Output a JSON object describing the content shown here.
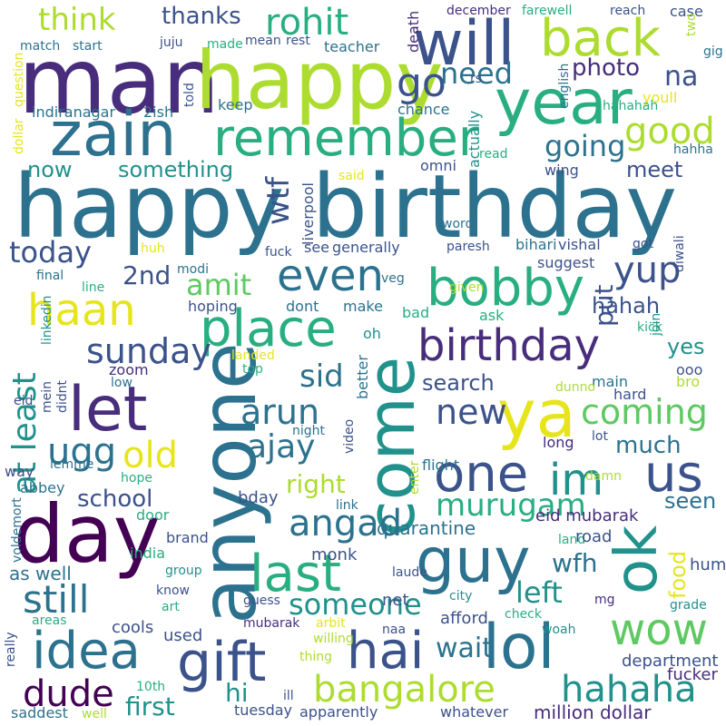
{
  "palette": {
    "v1": "#440154",
    "v2": "#472d7b",
    "v3": "#3b528b",
    "v4": "#2c728e",
    "v5": "#21918c",
    "v6": "#28ae80",
    "v7": "#5ec962",
    "v8": "#addc30",
    "v9": "#e6e51c"
  },
  "words": [
    {
      "text": "happy birthday",
      "color": "v4"
    },
    {
      "text": "man",
      "color": "v2"
    },
    {
      "text": "happy",
      "color": "v8"
    },
    {
      "text": "will",
      "color": "v3"
    },
    {
      "text": "back",
      "color": "v8"
    },
    {
      "text": "year",
      "color": "v6"
    },
    {
      "text": "zain",
      "color": "v4"
    },
    {
      "text": "remember",
      "color": "v6"
    },
    {
      "text": "anyone",
      "color": "v4"
    },
    {
      "text": "come",
      "color": "v5"
    },
    {
      "text": "day",
      "color": "v1"
    },
    {
      "text": "ya",
      "color": "v9"
    },
    {
      "text": "ok",
      "color": "v5"
    },
    {
      "text": "guy",
      "color": "v4"
    },
    {
      "text": "lol",
      "color": "v4"
    },
    {
      "text": "hai",
      "color": "v3"
    },
    {
      "text": "gift",
      "color": "v3"
    },
    {
      "text": "idea",
      "color": "v4"
    },
    {
      "text": "wow",
      "color": "v7"
    },
    {
      "text": "one",
      "color": "v3"
    },
    {
      "text": "us",
      "color": "v3"
    },
    {
      "text": "im",
      "color": "v5"
    },
    {
      "text": "let",
      "color": "v2"
    },
    {
      "text": "bobby",
      "color": "v6"
    },
    {
      "text": "birthday",
      "color": "v2"
    },
    {
      "text": "place",
      "color": "v6"
    },
    {
      "text": "even",
      "color": "v4"
    },
    {
      "text": "haan",
      "color": "v9"
    },
    {
      "text": "last",
      "color": "v6"
    },
    {
      "text": "go",
      "color": "v3"
    },
    {
      "text": "need",
      "color": "v4"
    },
    {
      "text": "think",
      "color": "v8"
    },
    {
      "text": "rohit",
      "color": "v6"
    },
    {
      "text": "thanks",
      "color": "v3"
    },
    {
      "text": "photo",
      "color": "v2"
    },
    {
      "text": "na",
      "color": "v3"
    },
    {
      "text": "good",
      "color": "v8"
    },
    {
      "text": "going",
      "color": "v4"
    },
    {
      "text": "something",
      "color": "v5"
    },
    {
      "text": "now",
      "color": "v5"
    },
    {
      "text": "wtf",
      "color": "v3"
    },
    {
      "text": "meet",
      "color": "v3"
    },
    {
      "text": "today",
      "color": "v3"
    },
    {
      "text": "yup",
      "color": "v3"
    },
    {
      "text": "2nd",
      "color": "v3"
    },
    {
      "text": "amit",
      "color": "v7"
    },
    {
      "text": "put",
      "color": "v3"
    },
    {
      "text": "hahah",
      "color": "v3"
    },
    {
      "text": "sunday",
      "color": "v3"
    },
    {
      "text": "at least",
      "color": "v5"
    },
    {
      "text": "sid",
      "color": "v4"
    },
    {
      "text": "arun",
      "color": "v4"
    },
    {
      "text": "search",
      "color": "v3"
    },
    {
      "text": "new",
      "color": "v3"
    },
    {
      "text": "coming",
      "color": "v7"
    },
    {
      "text": "ajay",
      "color": "v4"
    },
    {
      "text": "ugg",
      "color": "v4"
    },
    {
      "text": "old",
      "color": "v9"
    },
    {
      "text": "much",
      "color": "v4"
    },
    {
      "text": "murugam",
      "color": "v6"
    },
    {
      "text": "right",
      "color": "v8"
    },
    {
      "text": "school",
      "color": "v3"
    },
    {
      "text": "angad",
      "color": "v4"
    },
    {
      "text": "seen",
      "color": "v4"
    },
    {
      "text": "quarantine",
      "color": "v4"
    },
    {
      "text": "wfh",
      "color": "v4"
    },
    {
      "text": "food",
      "color": "v9"
    },
    {
      "text": "still",
      "color": "v4"
    },
    {
      "text": "someone",
      "color": "v5"
    },
    {
      "text": "left",
      "color": "v5"
    },
    {
      "text": "wait",
      "color": "v4"
    },
    {
      "text": "dude",
      "color": "v1"
    },
    {
      "text": "first",
      "color": "v5"
    },
    {
      "text": "bangalore",
      "color": "v8"
    },
    {
      "text": "hahaha",
      "color": "v5"
    },
    {
      "text": "hi",
      "color": "v5"
    },
    {
      "text": "as well",
      "color": "v4"
    },
    {
      "text": "yes",
      "color": "v5"
    },
    {
      "text": "eid mubarak",
      "color": "v2"
    },
    {
      "text": "million dollar",
      "color": "v2"
    },
    {
      "text": "department",
      "color": "v3"
    },
    {
      "text": "fucker",
      "color": "v2"
    },
    {
      "text": "afford",
      "color": "v3"
    },
    {
      "text": "cools",
      "color": "v3"
    },
    {
      "text": "used",
      "color": "v3"
    },
    {
      "text": "bday",
      "color": "v3"
    },
    {
      "text": "hum",
      "color": "v3"
    },
    {
      "text": "grade",
      "color": "v5"
    },
    {
      "text": "mg",
      "color": "v2"
    },
    {
      "text": "land",
      "color": "v6"
    },
    {
      "text": "road",
      "color": "v3"
    },
    {
      "text": "net",
      "color": "v3"
    },
    {
      "text": "laude",
      "color": "v3"
    },
    {
      "text": "monk",
      "color": "v3"
    },
    {
      "text": "city",
      "color": "v5"
    },
    {
      "text": "check",
      "color": "v6"
    },
    {
      "text": "woah",
      "color": "v5"
    },
    {
      "text": "naa",
      "color": "v3"
    },
    {
      "text": "guess",
      "color": "v3"
    },
    {
      "text": "mubarak",
      "color": "v2"
    },
    {
      "text": "arbit",
      "color": "v9"
    },
    {
      "text": "willing",
      "color": "v8"
    },
    {
      "text": "thing",
      "color": "v8"
    },
    {
      "text": "ill",
      "color": "v3"
    },
    {
      "text": "tuesday",
      "color": "v3"
    },
    {
      "text": "apparently",
      "color": "v3"
    },
    {
      "text": "whatever",
      "color": "v3"
    },
    {
      "text": "10th",
      "color": "v6"
    },
    {
      "text": "well",
      "color": "v8"
    },
    {
      "text": "saddest",
      "color": "v4"
    },
    {
      "text": "really",
      "color": "v3"
    },
    {
      "text": "areas",
      "color": "v6"
    },
    {
      "text": "art",
      "color": "v6"
    },
    {
      "text": "know",
      "color": "v3"
    },
    {
      "text": "group",
      "color": "v5"
    },
    {
      "text": "india",
      "color": "v6"
    },
    {
      "text": "brand",
      "color": "v3"
    },
    {
      "text": "door",
      "color": "v6"
    },
    {
      "text": "hope",
      "color": "v6"
    },
    {
      "text": "abbey",
      "color": "v4"
    },
    {
      "text": "voldemort",
      "color": "v4"
    },
    {
      "text": "way",
      "color": "v3"
    },
    {
      "text": "lemme",
      "color": "v4"
    },
    {
      "text": "eid",
      "color": "v3"
    },
    {
      "text": "mein",
      "color": "v3"
    },
    {
      "text": "didnt",
      "color": "v3"
    },
    {
      "text": "zoom",
      "color": "v2"
    },
    {
      "text": "low",
      "color": "v4"
    },
    {
      "text": "linkedin",
      "color": "v5"
    },
    {
      "text": "line",
      "color": "v6"
    },
    {
      "text": "final",
      "color": "v4"
    },
    {
      "text": "modi",
      "color": "v4"
    },
    {
      "text": "hoping",
      "color": "v3"
    },
    {
      "text": "dont",
      "color": "v4"
    },
    {
      "text": "make",
      "color": "v4"
    },
    {
      "text": "veg",
      "color": "v4"
    },
    {
      "text": "bad",
      "color": "v6"
    },
    {
      "text": "ask",
      "color": "v6"
    },
    {
      "text": "oh",
      "color": "v5"
    },
    {
      "text": "landed",
      "color": "v9"
    },
    {
      "text": "top",
      "color": "v6"
    },
    {
      "text": "better",
      "color": "v4"
    },
    {
      "text": "night",
      "color": "v4"
    },
    {
      "text": "video",
      "color": "v3"
    },
    {
      "text": "link",
      "color": "v4"
    },
    {
      "text": "enter",
      "color": "v8"
    },
    {
      "text": "flight",
      "color": "v4"
    },
    {
      "text": "long",
      "color": "v2"
    },
    {
      "text": "lot",
      "color": "v3"
    },
    {
      "text": "damn",
      "color": "v8"
    },
    {
      "text": "hard",
      "color": "v3"
    },
    {
      "text": "main",
      "color": "v4"
    },
    {
      "text": "bro",
      "color": "v8"
    },
    {
      "text": "ooo",
      "color": "v3"
    },
    {
      "text": "kick",
      "color": "v6"
    },
    {
      "text": "join",
      "color": "v5"
    },
    {
      "text": "dunno",
      "color": "v8"
    },
    {
      "text": "given",
      "color": "v8"
    },
    {
      "text": "suggest",
      "color": "v3"
    },
    {
      "text": "diwali",
      "color": "v3"
    },
    {
      "text": "paresh",
      "color": "v3"
    },
    {
      "text": "bihari",
      "color": "v4"
    },
    {
      "text": "vishal",
      "color": "v3"
    },
    {
      "text": "got",
      "color": "v3"
    },
    {
      "text": "see",
      "color": "v3"
    },
    {
      "text": "generally",
      "color": "v3"
    },
    {
      "text": "fuck",
      "color": "v3"
    },
    {
      "text": "huh",
      "color": "v9"
    },
    {
      "text": "liverpool",
      "color": "v3"
    },
    {
      "text": "word",
      "color": "v4"
    },
    {
      "text": "said",
      "color": "v9"
    },
    {
      "text": "omni",
      "color": "v3"
    },
    {
      "text": "wing",
      "color": "v3"
    },
    {
      "text": "actually",
      "color": "v5"
    },
    {
      "text": "read",
      "color": "v6"
    },
    {
      "text": "hahha",
      "color": "v4"
    },
    {
      "text": "youll",
      "color": "v9"
    },
    {
      "text": "hahahah",
      "color": "v6"
    },
    {
      "text": "english",
      "color": "v4"
    },
    {
      "text": "rs",
      "color": "v3"
    },
    {
      "text": "chance",
      "color": "v4"
    },
    {
      "text": "keep",
      "color": "v4"
    },
    {
      "text": "indiranagar",
      "color": "v4"
    },
    {
      "text": "2ish",
      "color": "v4"
    },
    {
      "text": "told",
      "color": "v3"
    },
    {
      "text": "dollar",
      "color": "v9"
    },
    {
      "text": "question",
      "color": "v9"
    },
    {
      "text": "match",
      "color": "v4"
    },
    {
      "text": "start",
      "color": "v4"
    },
    {
      "text": "juju",
      "color": "v3"
    },
    {
      "text": "made",
      "color": "v6"
    },
    {
      "text": "mean",
      "color": "v3"
    },
    {
      "text": "rest",
      "color": "v3"
    },
    {
      "text": "teacher",
      "color": "v4"
    },
    {
      "text": "death",
      "color": "v2"
    },
    {
      "text": "december",
      "color": "v2"
    },
    {
      "text": "farewell",
      "color": "v6"
    },
    {
      "text": "reach",
      "color": "v3"
    },
    {
      "text": "case",
      "color": "v3"
    },
    {
      "text": "two",
      "color": "v8"
    },
    {
      "text": "gig",
      "color": "v4"
    }
  ]
}
